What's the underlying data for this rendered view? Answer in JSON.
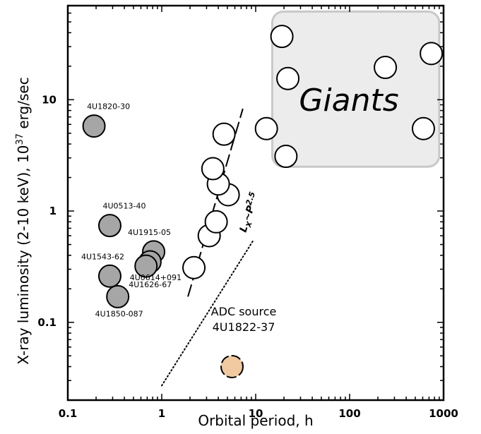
{
  "chart_data": {
    "type": "scatter",
    "xlabel": "Orbital period, h",
    "ylabel_prefix": "X-ray luminosity (2-10 keV), 10",
    "ylabel_exp": "37",
    "ylabel_suffix": " erg/sec",
    "x_scale": "log",
    "y_scale": "log",
    "xlim": [
      0.1,
      1000
    ],
    "ylim": [
      0.02,
      70
    ],
    "x_ticks": [
      {
        "value": 0.1,
        "label": "0.1"
      },
      {
        "value": 1,
        "label": "1"
      },
      {
        "value": 10,
        "label": "10"
      },
      {
        "value": 100,
        "label": "100"
      },
      {
        "value": 1000,
        "label": "1000"
      }
    ],
    "y_ticks": [
      {
        "value": 0.1,
        "label": "0.1"
      },
      {
        "value": 1,
        "label": "1"
      },
      {
        "value": 10,
        "label": "10"
      }
    ],
    "grid": false,
    "colors": {
      "gray_fill": "#a6a6a6",
      "adc_fill": "#f0c9a0",
      "giants_box": "#ececec",
      "giants_border": "#c8c8c8"
    },
    "series": [
      {
        "style": "gray-filled",
        "points": [
          {
            "x": 0.19,
            "y": 5.8,
            "label": "4U1820-30"
          },
          {
            "x": 0.28,
            "y": 0.74,
            "label": "4U0513-40"
          },
          {
            "x": 0.82,
            "y": 0.43,
            "label": "4U1915-05"
          },
          {
            "x": 0.28,
            "y": 0.26,
            "label": "4U1543-62"
          },
          {
            "x": 0.75,
            "y": 0.35,
            "label": "4U0614+091"
          },
          {
            "x": 0.68,
            "y": 0.32,
            "label": "4U1626-67"
          },
          {
            "x": 0.34,
            "y": 0.17,
            "label": "4U1850-087"
          }
        ]
      },
      {
        "style": "open",
        "points": [
          {
            "x": 2.2,
            "y": 0.31
          },
          {
            "x": 3.2,
            "y": 0.6
          },
          {
            "x": 3.8,
            "y": 0.8
          },
          {
            "x": 5.1,
            "y": 1.4
          },
          {
            "x": 4.0,
            "y": 1.75
          },
          {
            "x": 3.5,
            "y": 2.4
          },
          {
            "x": 4.6,
            "y": 4.9
          },
          {
            "x": 13.0,
            "y": 5.5
          },
          {
            "x": 19.0,
            "y": 37.0
          },
          {
            "x": 22.0,
            "y": 15.5
          },
          {
            "x": 21.0,
            "y": 3.1
          },
          {
            "x": 240.0,
            "y": 19.5
          },
          {
            "x": 740.0,
            "y": 26.0
          },
          {
            "x": 610.0,
            "y": 5.5
          }
        ]
      },
      {
        "style": "adc",
        "points": [
          {
            "x": 5.6,
            "y": 0.04,
            "label": "4U1822-37"
          }
        ]
      }
    ],
    "annotations": {
      "giants": "Giants",
      "adc_title": "ADC source",
      "adc_name": "4U1822-37",
      "fit_main": "L",
      "fit_sub": "X",
      "fit_tilde": "~P",
      "fit_exp": "2.5"
    },
    "giants_region": {
      "x_range": [
        15,
        900
      ],
      "y_range": [
        2.5,
        62
      ]
    },
    "lines": [
      {
        "style": "dashed",
        "from": [
          1.9,
          0.17
        ],
        "to": [
          7.3,
          8.3
        ]
      },
      {
        "style": "dotted",
        "from": [
          1.0,
          0.027
        ],
        "to": [
          9.5,
          0.55
        ]
      }
    ]
  }
}
